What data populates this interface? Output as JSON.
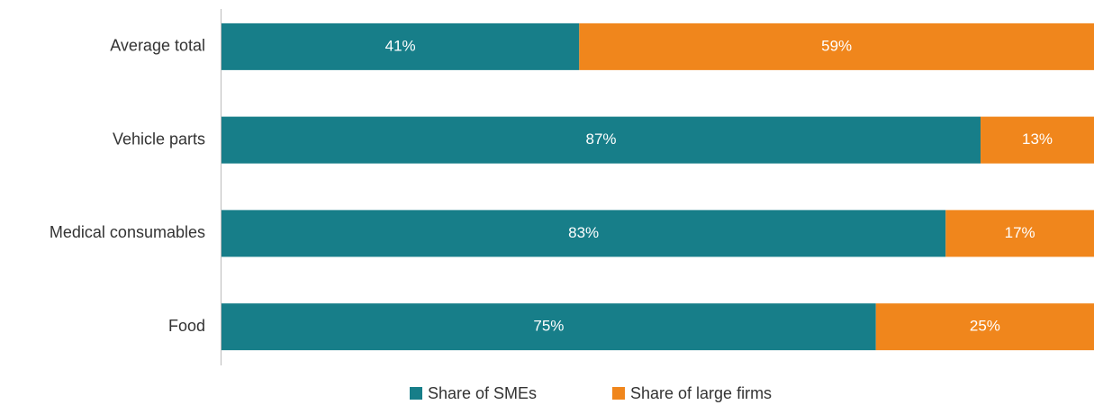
{
  "chart_data": {
    "type": "stacked-barh",
    "categories": [
      "Average total",
      "Vehicle parts",
      "Medical consumables",
      "Food"
    ],
    "series": [
      {
        "name": "Share of SMEs",
        "color": "#177e89",
        "values": [
          41,
          87,
          83,
          75
        ],
        "value_labels": [
          "41%",
          "87%",
          "83%",
          "75%"
        ]
      },
      {
        "name": "Share of large firms",
        "color": "#f0861c",
        "values": [
          59,
          13,
          17,
          25
        ],
        "value_labels": [
          "59%",
          "13%",
          "17%",
          "25%"
        ]
      }
    ],
    "xlim": [
      0,
      100
    ],
    "legend": "bottom"
  }
}
